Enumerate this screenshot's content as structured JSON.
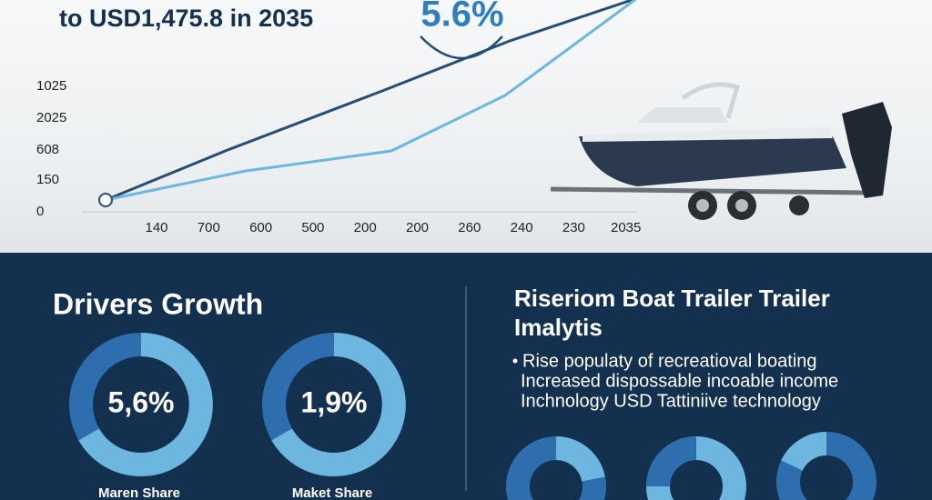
{
  "header": {
    "title": "to USD1,475.8 in 2035",
    "rate": "5.6%"
  },
  "chart": {
    "y_labels": [
      "1025",
      "2025",
      "608",
      "150",
      "0"
    ],
    "x_labels": [
      "140",
      "700",
      "600",
      "500",
      "200",
      "200",
      "260",
      "240",
      "230",
      "2035"
    ]
  },
  "left": {
    "title": "Drivers Growth",
    "donuts": [
      {
        "value": "5,6%",
        "label": "Maren Share"
      },
      {
        "value": "1,9%",
        "label": "Maket Share"
      }
    ]
  },
  "right": {
    "title_lines": [
      "Riseriom Boat Trailer Trailer",
      "Imalytis"
    ],
    "bullets": [
      "Rise populaty of recreatioval boating",
      "Increased dispossable incoable income",
      "Inchnology USD Tattiniive technology"
    ]
  }
}
